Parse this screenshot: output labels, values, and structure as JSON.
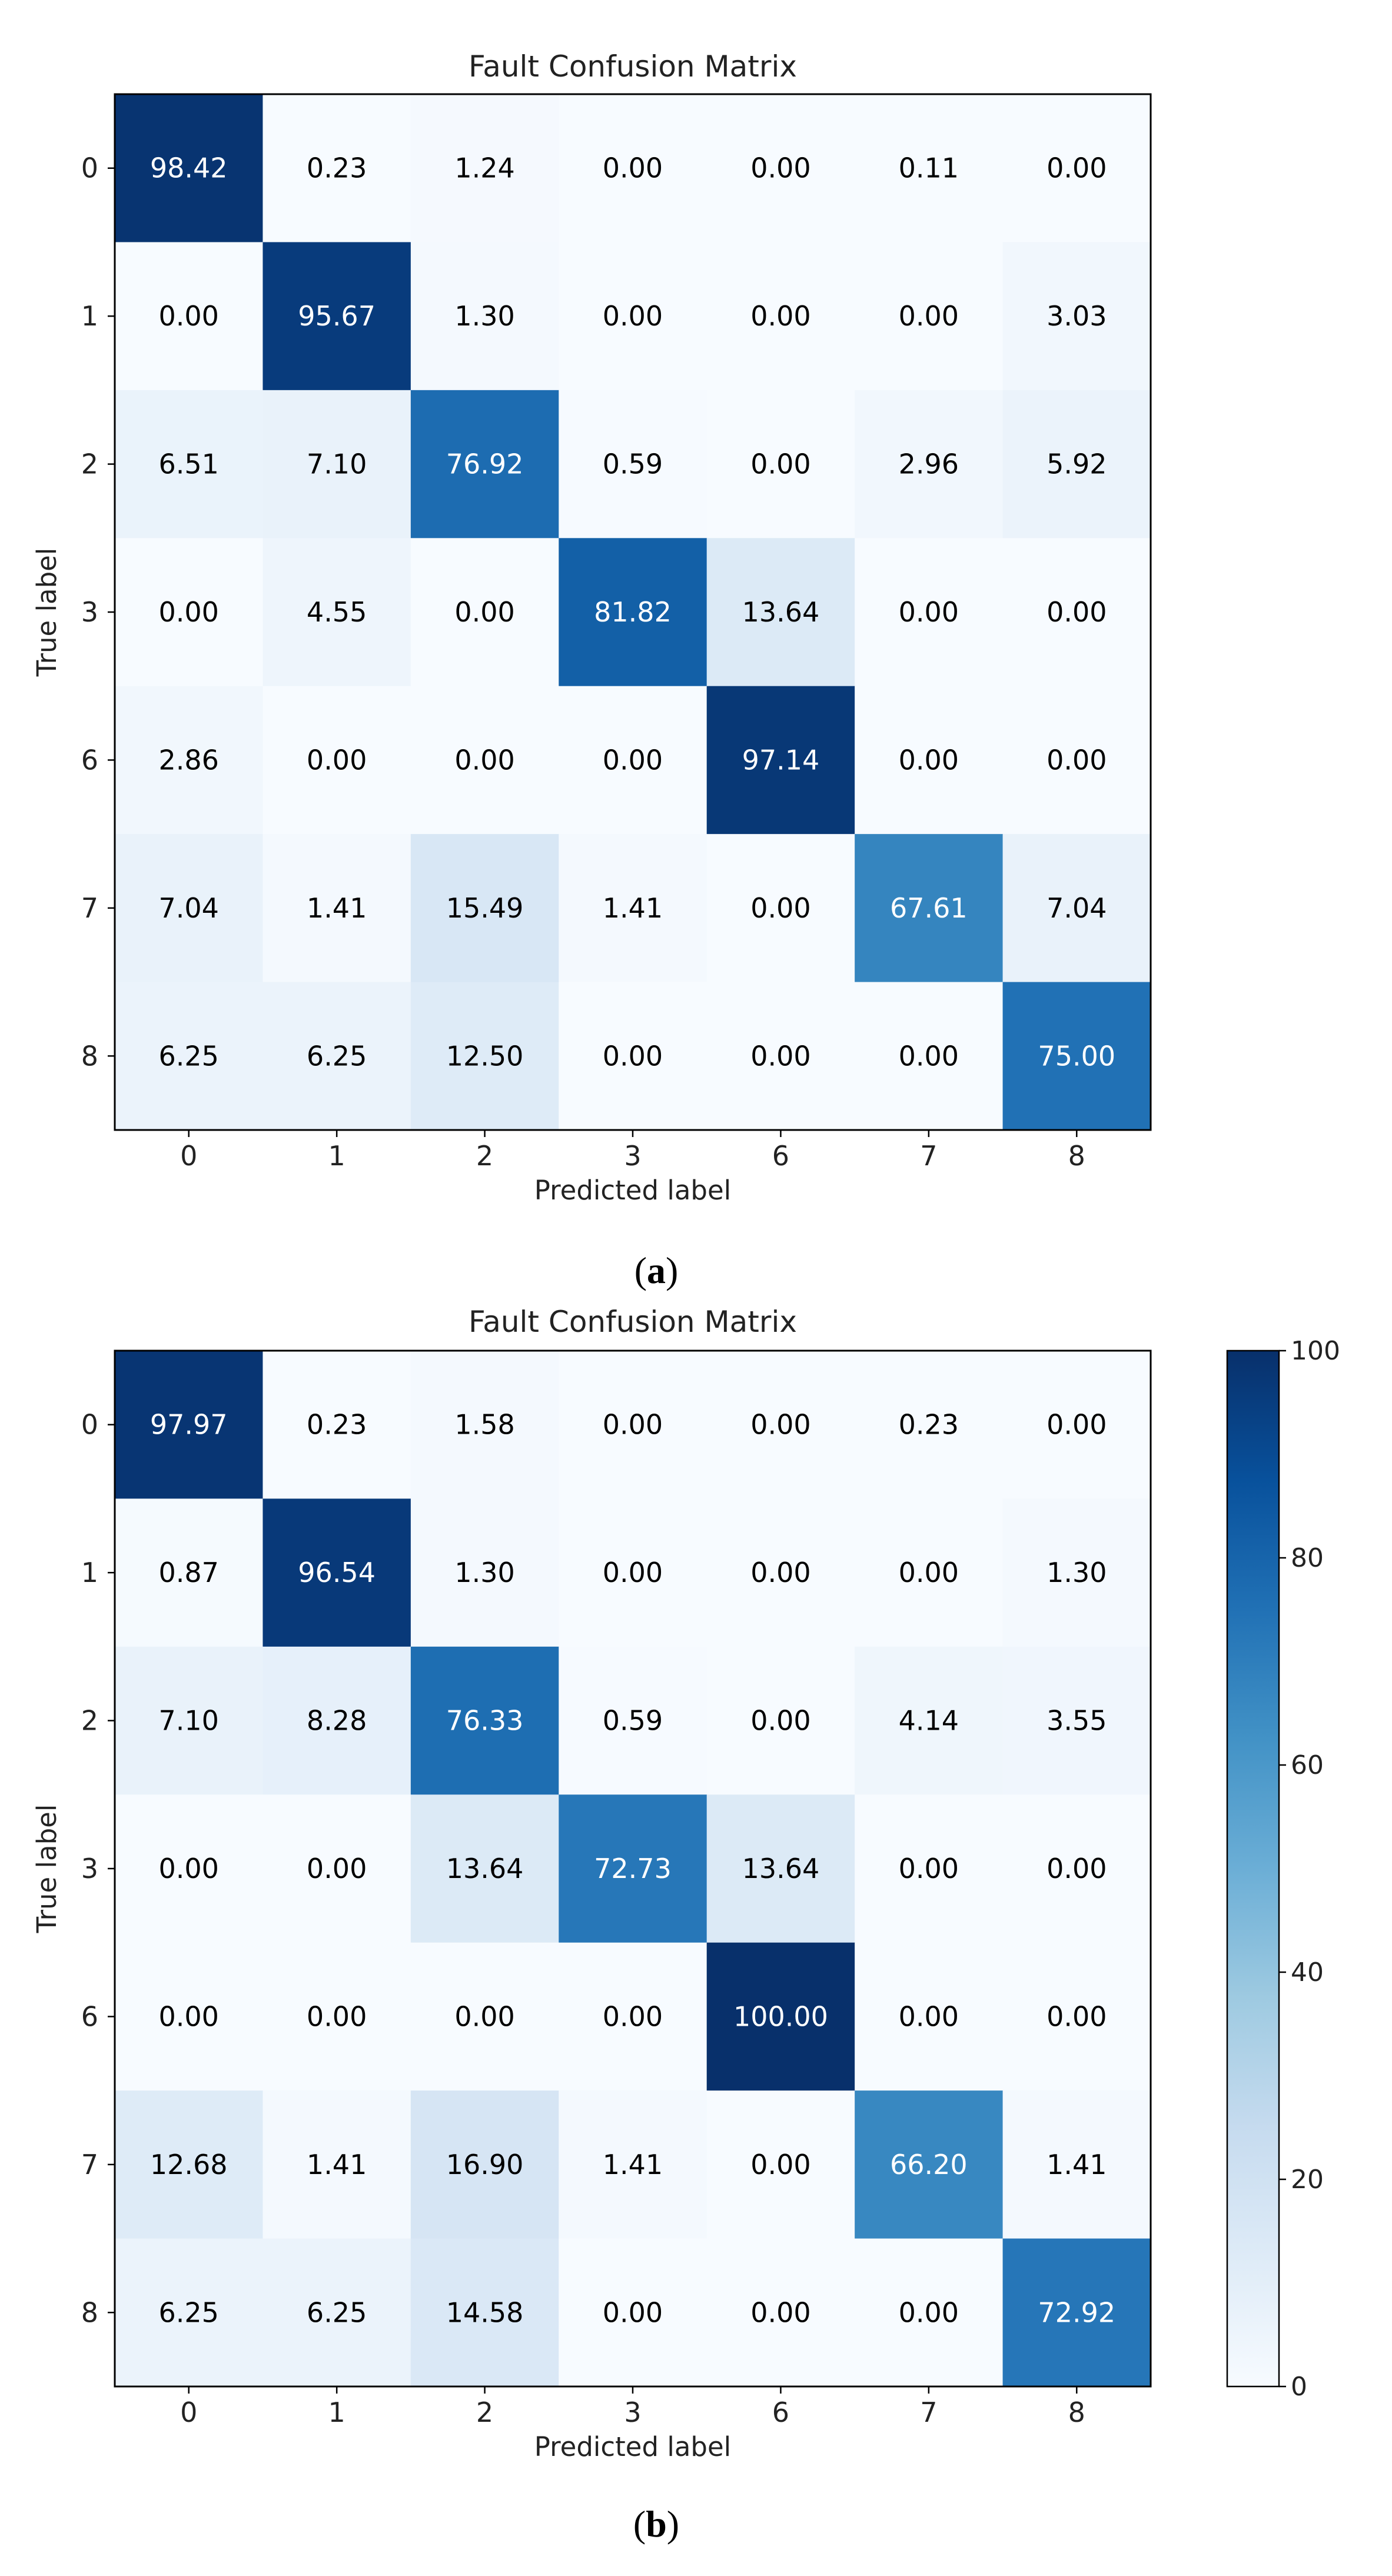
{
  "colors": {
    "frame": "#000000",
    "text_dark": "#000000",
    "text_light": "#ffffff",
    "colormap": [
      "#f7fbff",
      "#deebf7",
      "#c6dbef",
      "#9ecae1",
      "#6baed6",
      "#4292c6",
      "#2171b5",
      "#08519c",
      "#08306b"
    ]
  },
  "chart_data": [
    {
      "type": "heatmap",
      "panel": "a",
      "caption_letter": "a",
      "title": "Fault Confusion Matrix",
      "xlabel": "Predicted label",
      "ylabel": "True label",
      "x_categories": [
        "0",
        "1",
        "2",
        "3",
        "6",
        "7",
        "8"
      ],
      "y_categories": [
        "0",
        "1",
        "2",
        "3",
        "6",
        "7",
        "8"
      ],
      "value_range": [
        0,
        100
      ],
      "values": [
        [
          98.42,
          0.23,
          1.24,
          0.0,
          0.0,
          0.11,
          0.0
        ],
        [
          0.0,
          95.67,
          1.3,
          0.0,
          0.0,
          0.0,
          3.03
        ],
        [
          6.51,
          7.1,
          76.92,
          0.59,
          0.0,
          2.96,
          5.92
        ],
        [
          0.0,
          4.55,
          0.0,
          81.82,
          13.64,
          0.0,
          0.0
        ],
        [
          2.86,
          0.0,
          0.0,
          0.0,
          97.14,
          0.0,
          0.0
        ],
        [
          7.04,
          1.41,
          15.49,
          1.41,
          0.0,
          67.61,
          7.04
        ],
        [
          6.25,
          6.25,
          12.5,
          0.0,
          0.0,
          0.0,
          75.0
        ]
      ],
      "colorbar": false
    },
    {
      "type": "heatmap",
      "panel": "b",
      "caption_letter": "b",
      "title": "Fault Confusion Matrix",
      "xlabel": "Predicted label",
      "ylabel": "True label",
      "x_categories": [
        "0",
        "1",
        "2",
        "3",
        "6",
        "7",
        "8"
      ],
      "y_categories": [
        "0",
        "1",
        "2",
        "3",
        "6",
        "7",
        "8"
      ],
      "value_range": [
        0,
        100
      ],
      "values": [
        [
          97.97,
          0.23,
          1.58,
          0.0,
          0.0,
          0.23,
          0.0
        ],
        [
          0.87,
          96.54,
          1.3,
          0.0,
          0.0,
          0.0,
          1.3
        ],
        [
          7.1,
          8.28,
          76.33,
          0.59,
          0.0,
          4.14,
          3.55
        ],
        [
          0.0,
          0.0,
          13.64,
          72.73,
          13.64,
          0.0,
          0.0
        ],
        [
          0.0,
          0.0,
          0.0,
          0.0,
          100.0,
          0.0,
          0.0
        ],
        [
          12.68,
          1.41,
          16.9,
          1.41,
          0.0,
          66.2,
          1.41
        ],
        [
          6.25,
          6.25,
          14.58,
          0.0,
          0.0,
          0.0,
          72.92
        ]
      ],
      "colorbar": true,
      "colorbar_ticks": [
        0,
        20,
        40,
        60,
        80,
        100
      ]
    }
  ]
}
